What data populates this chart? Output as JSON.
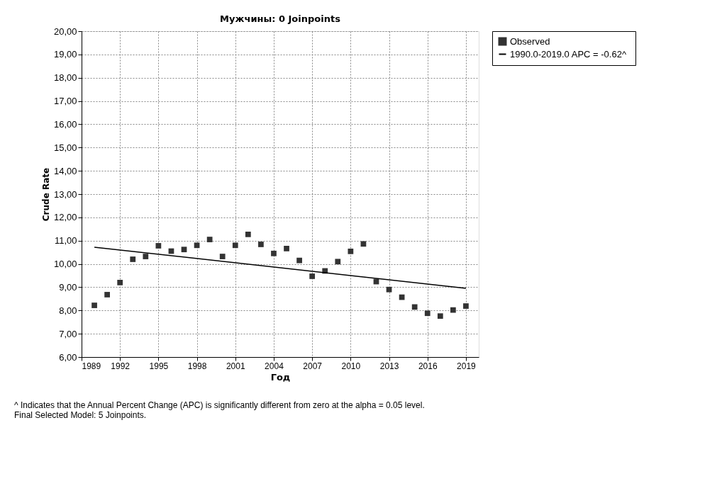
{
  "chart_data": {
    "type": "scatter",
    "title": "Мужчины: 0 Joinpoints",
    "xlabel": "Год",
    "ylabel": "Crude Rate",
    "series": [
      {
        "name": "Observed",
        "color": "#333333",
        "marker": "square",
        "x": [
          1990,
          1991,
          1992,
          1993,
          1994,
          1995,
          1996,
          1997,
          1998,
          1999,
          2000,
          2001,
          2002,
          2003,
          2004,
          2005,
          2006,
          2007,
          2008,
          2009,
          2010,
          2011,
          2012,
          2013,
          2014,
          2015,
          2016,
          2017,
          2018,
          2019
        ],
        "values": [
          8.22,
          8.68,
          9.2,
          10.2,
          10.32,
          10.78,
          10.55,
          10.62,
          10.8,
          11.05,
          10.32,
          10.8,
          11.27,
          10.84,
          10.45,
          10.66,
          10.15,
          9.47,
          9.7,
          10.1,
          10.54,
          10.86,
          9.24,
          8.9,
          8.57,
          8.15,
          7.88,
          7.76,
          8.02,
          8.19
        ]
      },
      {
        "name": "1990.0-2019.0 APC  = -0.62^",
        "type": "line",
        "color": "#000000",
        "line_style": "solid",
        "x": [
          1990,
          2019
        ],
        "values": [
          10.72,
          8.95
        ]
      }
    ],
    "xlim": [
      1989,
      2020
    ],
    "xticks": [
      1989,
      1992,
      1995,
      1998,
      2001,
      2004,
      2007,
      2010,
      2013,
      2016,
      2019
    ],
    "ylim": [
      6,
      20
    ],
    "yticks": [
      {
        "value": 6,
        "label": "6,00"
      },
      {
        "value": 7,
        "label": "7,00"
      },
      {
        "value": 8,
        "label": "8,00"
      },
      {
        "value": 9,
        "label": "9,00"
      },
      {
        "value": 10,
        "label": "10,00"
      },
      {
        "value": 11,
        "label": "11,00"
      },
      {
        "value": 12,
        "label": "12,00"
      },
      {
        "value": 13,
        "label": "13,00"
      },
      {
        "value": 14,
        "label": "14,00"
      },
      {
        "value": 15,
        "label": "15,00"
      },
      {
        "value": 16,
        "label": "16,00"
      },
      {
        "value": 17,
        "label": "17,00"
      },
      {
        "value": 18,
        "label": "18,00"
      },
      {
        "value": 19,
        "label": "19,00"
      },
      {
        "value": 20,
        "label": "20,00"
      }
    ],
    "grid": true,
    "legend": "top right",
    "annotations": [
      "^ Indicates that the Annual Percent Change (APC) is significantly different from zero at the alpha = 0.05 level.",
      "Final Selected Model: 5 Joinpoints."
    ]
  }
}
